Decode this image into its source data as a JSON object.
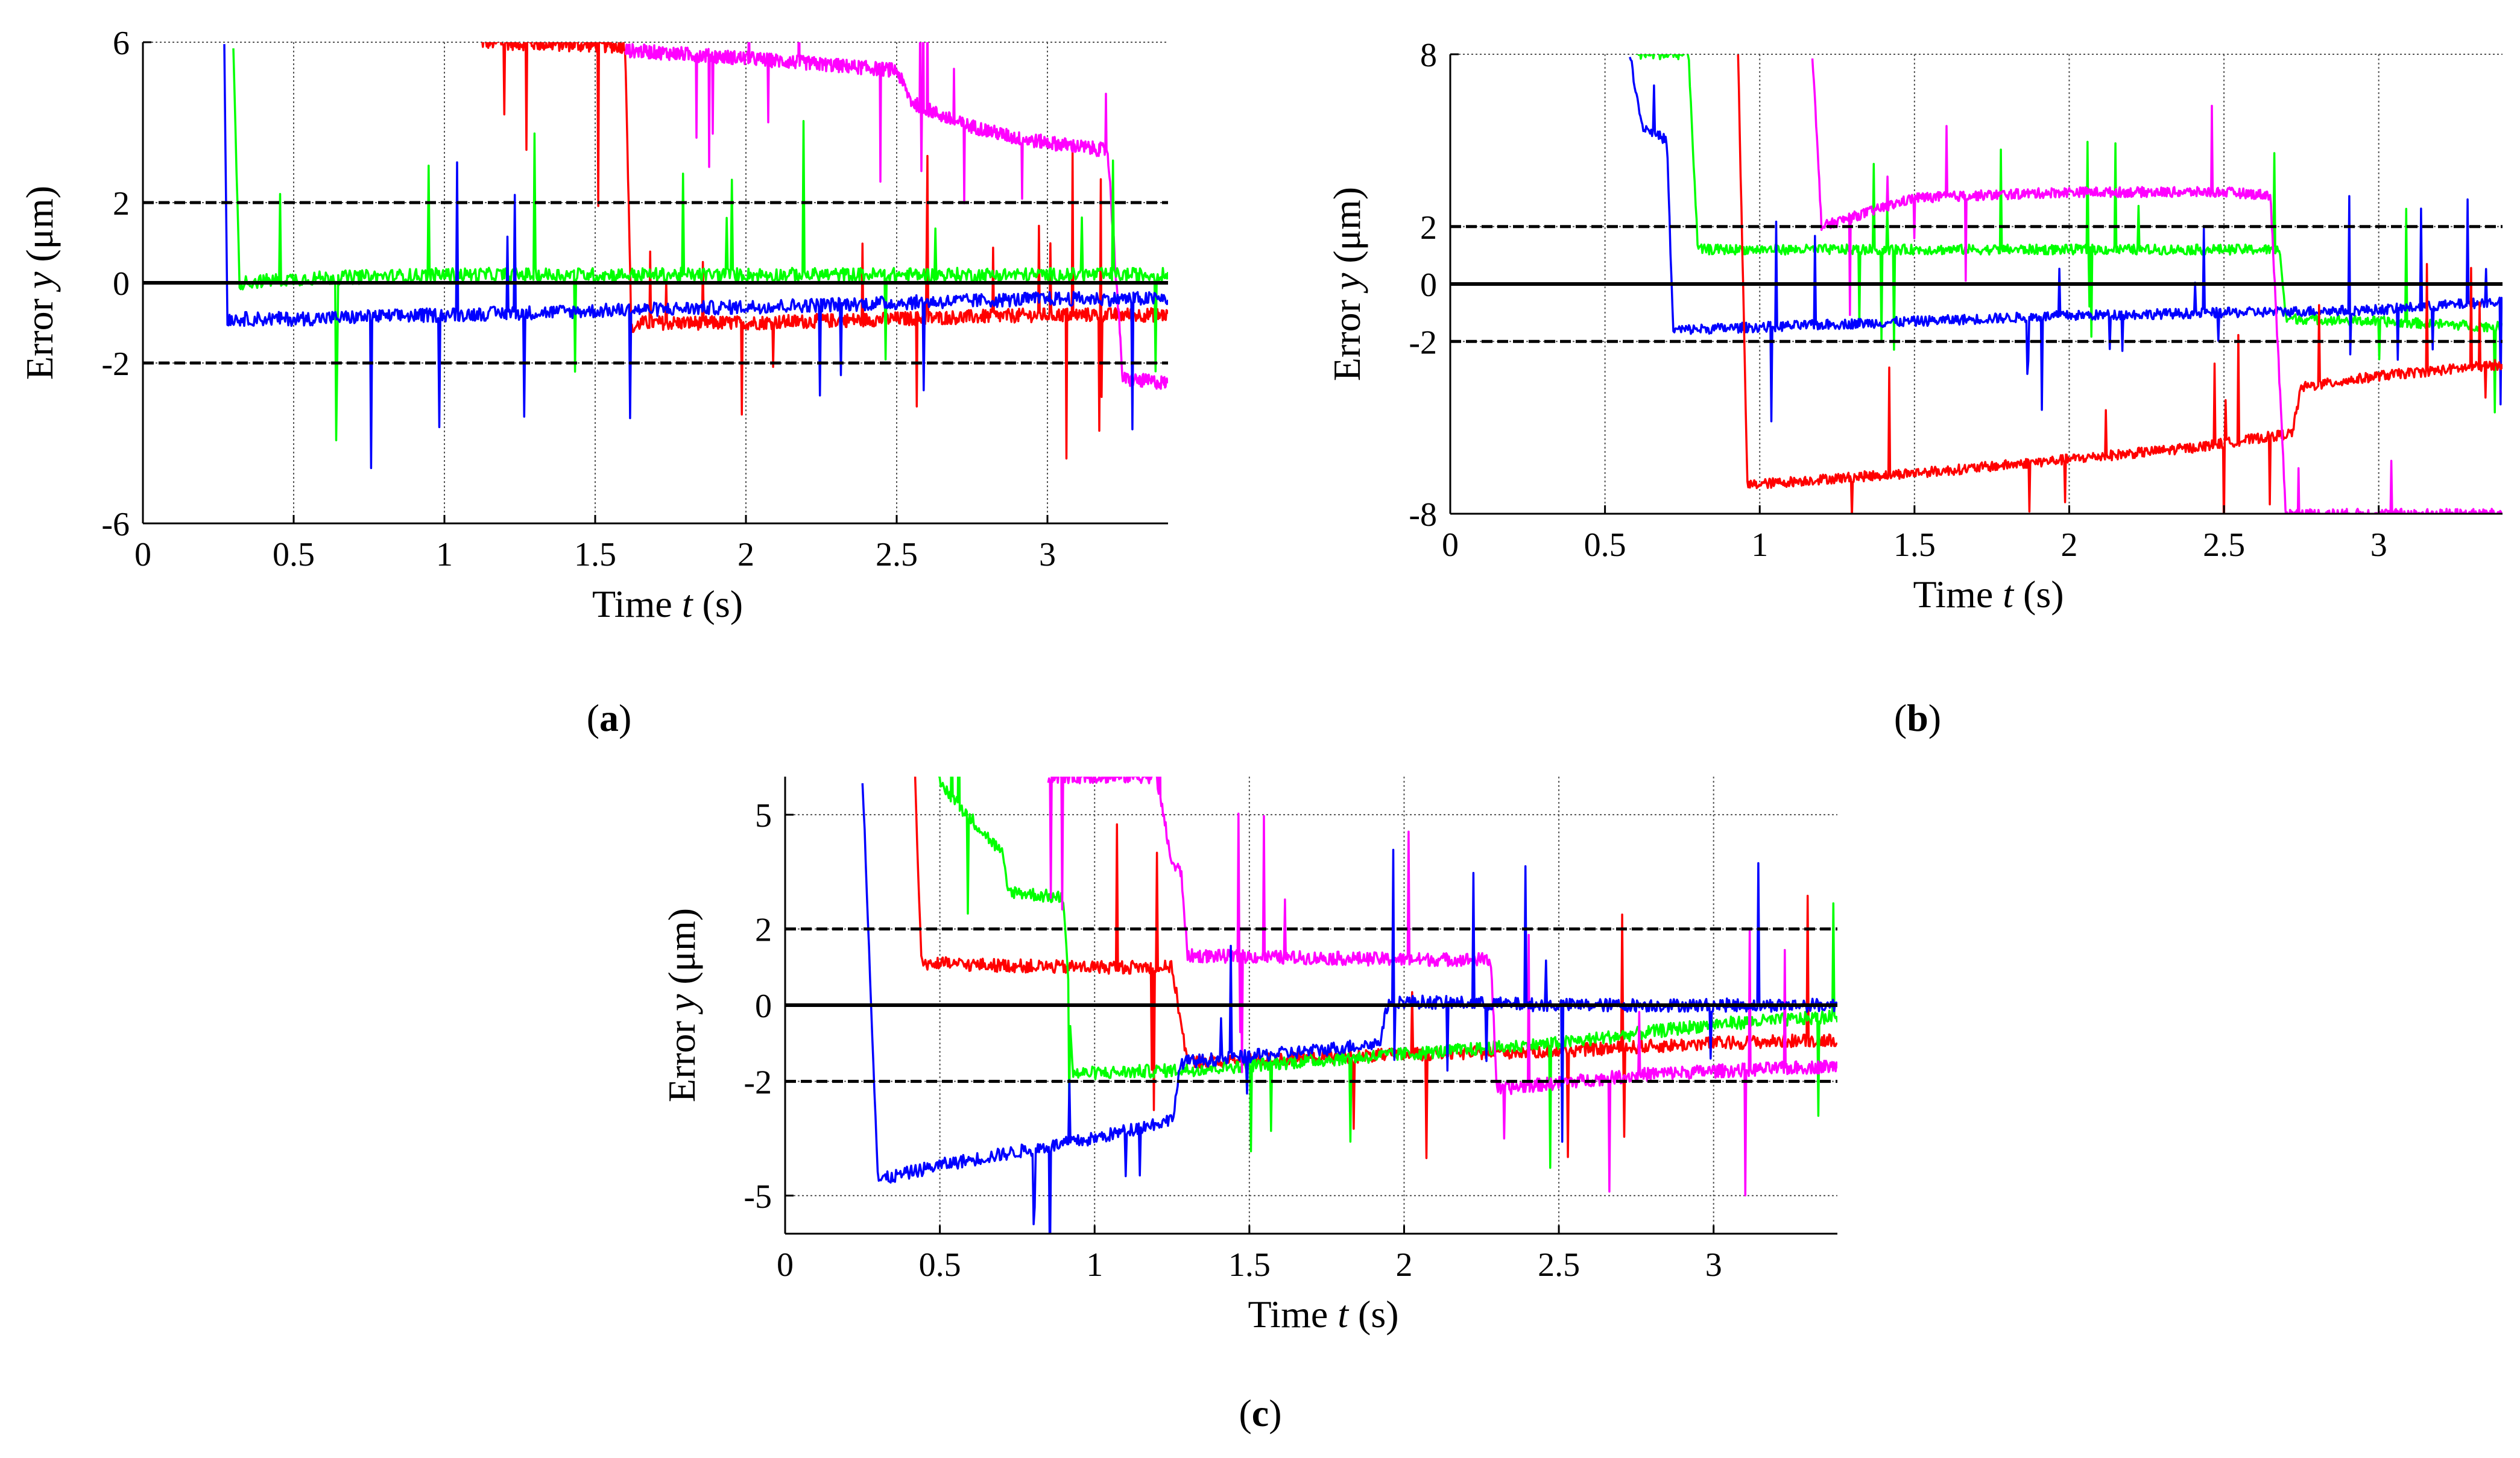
{
  "figure": {
    "colors": {
      "red": "#ff0000",
      "green": "#00ff00",
      "blue": "#0000ff",
      "magenta": "#ff00ff",
      "reference": "#000000"
    }
  },
  "chart_data": [
    {
      "panel_label": "a",
      "type": "line",
      "xlabel": "Time",
      "xvar": "t",
      "xunit": "(s)",
      "ylabel": "Error",
      "yvar": "y",
      "yunit": "(μm)",
      "xlim": [
        0,
        3.4
      ],
      "ylim": [
        -6,
        6
      ],
      "xticks": [
        0,
        0.5,
        1,
        1.5,
        2,
        2.5,
        3
      ],
      "xtick_labels": [
        "0",
        "0.5",
        "1",
        "1.5",
        "2",
        "2.5",
        "3"
      ],
      "yticks": [
        -6,
        -2,
        0,
        2,
        6
      ],
      "ytick_labels": [
        "-6",
        "-2",
        "0",
        "2",
        "6"
      ],
      "grid": true,
      "reference_lines": [
        {
          "y": 0,
          "style": "solid"
        },
        {
          "y": 2,
          "style": "dashed"
        },
        {
          "y": -2,
          "style": "dashed"
        }
      ],
      "series": [
        {
          "color": "red",
          "x": [
            1.12,
            1.6,
            1.62,
            1.65,
            2.0,
            2.5,
            3.0,
            3.4
          ],
          "y": [
            6,
            5.9,
            -1.2,
            -1.0,
            -1.0,
            -0.9,
            -0.8,
            -0.8
          ]
        },
        {
          "color": "magenta",
          "x": [
            1.6,
            2.0,
            2.5,
            2.55,
            2.7,
            2.9,
            3.2,
            3.25,
            3.4
          ],
          "y": [
            5.8,
            5.6,
            5.3,
            4.5,
            4.0,
            3.6,
            3.3,
            -2.4,
            -2.5
          ]
        },
        {
          "color": "green",
          "x": [
            0.3,
            0.32,
            0.5,
            1.0,
            2.0,
            3.0,
            3.4
          ],
          "y": [
            6,
            0.0,
            0.1,
            0.2,
            0.2,
            0.2,
            0.2
          ]
        },
        {
          "color": "blue",
          "x": [
            0.27,
            0.28,
            0.5,
            1.0,
            1.5,
            2.0,
            2.5,
            3.0,
            3.4
          ],
          "y": [
            6,
            -0.9,
            -0.9,
            -0.8,
            -0.7,
            -0.6,
            -0.5,
            -0.4,
            -0.4
          ]
        }
      ]
    },
    {
      "panel_label": "b",
      "type": "line",
      "xlabel": "Time",
      "xvar": "t",
      "xunit": "(s)",
      "ylabel": "Error",
      "yvar": "y",
      "yunit": "(μm)",
      "xlim": [
        0,
        3.4
      ],
      "ylim": [
        -8,
        8
      ],
      "xticks": [
        0,
        0.5,
        1,
        1.5,
        2,
        2.5,
        3
      ],
      "xtick_labels": [
        "0",
        "0.5",
        "1",
        "1.5",
        "2",
        "2.5",
        "3"
      ],
      "yticks": [
        -8,
        -2,
        0,
        2,
        8
      ],
      "ytick_labels": [
        "-8",
        "-2",
        "0",
        "2",
        "8"
      ],
      "grid": true,
      "reference_lines": [
        {
          "y": 0,
          "style": "solid"
        },
        {
          "y": 2,
          "style": "dashed"
        },
        {
          "y": -2,
          "style": "dashed"
        }
      ],
      "series": [
        {
          "color": "green",
          "x": [
            0.6,
            0.77,
            0.8,
            1.5,
            2.0,
            2.68,
            2.7,
            3.0,
            3.4
          ],
          "y": [
            8,
            8,
            1.2,
            1.2,
            1.2,
            1.2,
            -1.2,
            -1.3,
            -1.5
          ]
        },
        {
          "color": "blue",
          "x": [
            0.58,
            0.62,
            0.7,
            0.72,
            1.0,
            1.5,
            2.0,
            2.5,
            3.0,
            3.4
          ],
          "y": [
            8,
            5.5,
            5.0,
            -1.6,
            -1.5,
            -1.3,
            -1.1,
            -1.0,
            -0.9,
            -0.6
          ]
        },
        {
          "color": "red",
          "x": [
            0.93,
            0.96,
            1.2,
            1.6,
            2.0,
            2.4,
            2.72,
            2.75,
            3.0,
            3.4
          ],
          "y": [
            8,
            -7.0,
            -6.8,
            -6.5,
            -6.1,
            -5.7,
            -5.2,
            -3.6,
            -3.2,
            -2.8
          ]
        },
        {
          "color": "magenta",
          "x": [
            1.17,
            1.2,
            1.5,
            2.0,
            2.5,
            2.65,
            2.7,
            3.4
          ],
          "y": [
            8,
            2.0,
            3.0,
            3.2,
            3.2,
            3.1,
            -8,
            -8
          ]
        }
      ]
    },
    {
      "panel_label": "c",
      "type": "line",
      "xlabel": "Time",
      "xvar": "t",
      "xunit": "(s)",
      "ylabel": "Error",
      "yvar": "y",
      "yunit": "(μm)",
      "xlim": [
        0,
        3.4
      ],
      "ylim": [
        -6,
        6
      ],
      "xticks": [
        0,
        0.5,
        1,
        1.5,
        2,
        2.5,
        3
      ],
      "xtick_labels": [
        "0",
        "0.5",
        "1",
        "1.5",
        "2",
        "2.5",
        "3"
      ],
      "yticks": [
        -5,
        -2,
        0,
        2,
        5
      ],
      "ytick_labels": [
        "-5",
        "-2",
        "0",
        "2",
        "5"
      ],
      "grid": true,
      "reference_lines": [
        {
          "y": 0,
          "style": "solid"
        },
        {
          "y": 2,
          "style": "dashed"
        },
        {
          "y": -2,
          "style": "dashed"
        }
      ],
      "series": [
        {
          "color": "red",
          "x": [
            0.42,
            0.44,
            0.9,
            1.25,
            1.3,
            2.0,
            2.5,
            3.0,
            3.4
          ],
          "y": [
            6,
            1.1,
            1.0,
            1.0,
            -1.5,
            -1.3,
            -1.2,
            -1.0,
            -0.9
          ]
        },
        {
          "color": "green",
          "x": [
            0.48,
            0.7,
            0.72,
            0.9,
            0.93,
            1.3,
            1.8,
            2.5,
            3.0,
            3.4
          ],
          "y": [
            6,
            4.0,
            3.0,
            2.8,
            -1.8,
            -1.7,
            -1.4,
            -1.0,
            -0.5,
            -0.3
          ]
        },
        {
          "color": "magenta",
          "x": [
            0.85,
            1.2,
            1.25,
            1.28,
            1.3,
            2.0,
            2.28,
            2.3,
            2.8,
            3.4
          ],
          "y": [
            6,
            6.0,
            3.7,
            3.5,
            1.3,
            1.2,
            1.2,
            -2.2,
            -1.8,
            -1.6
          ]
        },
        {
          "color": "blue",
          "x": [
            0.25,
            0.3,
            0.5,
            1.0,
            1.25,
            1.28,
            1.7,
            1.92,
            1.95,
            2.5,
            3.0,
            3.4
          ],
          "y": [
            6,
            -4.6,
            -4.2,
            -3.5,
            -3.0,
            -1.5,
            -1.2,
            -1.0,
            0.1,
            0.0,
            0.0,
            0.0
          ]
        }
      ]
    }
  ]
}
